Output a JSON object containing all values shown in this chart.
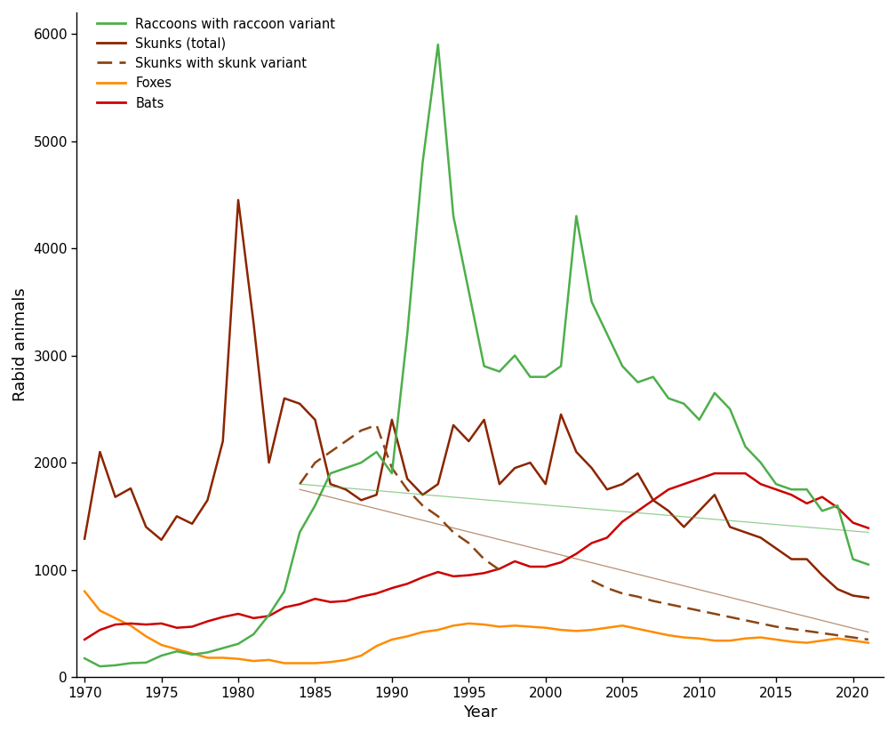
{
  "years": [
    1970,
    1971,
    1972,
    1973,
    1974,
    1975,
    1976,
    1977,
    1978,
    1979,
    1980,
    1981,
    1982,
    1983,
    1984,
    1985,
    1986,
    1987,
    1988,
    1989,
    1990,
    1991,
    1992,
    1993,
    1994,
    1995,
    1996,
    1997,
    1998,
    1999,
    2000,
    2001,
    2002,
    2003,
    2004,
    2005,
    2006,
    2007,
    2008,
    2009,
    2010,
    2011,
    2012,
    2013,
    2014,
    2015,
    2016,
    2017,
    2018,
    2019,
    2020,
    2021
  ],
  "raccoons": [
    175,
    100,
    110,
    130,
    135,
    200,
    240,
    210,
    230,
    270,
    310,
    400,
    580,
    800,
    1350,
    1600,
    1900,
    1950,
    2000,
    2100,
    1900,
    3200,
    4800,
    5900,
    4300,
    3600,
    2900,
    2850,
    3000,
    2800,
    2800,
    2900,
    4300,
    3500,
    3200,
    2900,
    2750,
    2800,
    2600,
    2550,
    2400,
    2650,
    2500,
    2150,
    2000,
    1800,
    1750,
    1750,
    1550,
    1600,
    1100,
    1050
  ],
  "skunks_total": [
    1290,
    2100,
    1680,
    1760,
    1400,
    1280,
    1500,
    1430,
    1650,
    2200,
    4450,
    3300,
    2000,
    2600,
    2550,
    2400,
    1800,
    1750,
    1650,
    1700,
    2400,
    1850,
    1700,
    1800,
    2350,
    2200,
    2400,
    1800,
    1950,
    2000,
    1800,
    2450,
    2100,
    1950,
    1750,
    1800,
    1900,
    1650,
    1550,
    1400,
    1550,
    1700,
    1400,
    1350,
    1300,
    1200,
    1100,
    1100,
    950,
    820,
    760,
    740
  ],
  "skunks_skunk_variant_x": [
    1984,
    1985,
    1986,
    1987,
    1988,
    1989,
    1990,
    1991,
    1992,
    1993,
    1994,
    1995,
    1996,
    1997,
    2003,
    2004,
    2005,
    2006,
    2007,
    2008,
    2009,
    2010,
    2011,
    2012,
    2013,
    2014,
    2015,
    2016,
    2017,
    2018,
    2019,
    2020,
    2021
  ],
  "skunks_skunk_variant_y": [
    1800,
    2000,
    2100,
    2200,
    2300,
    2350,
    1950,
    1750,
    1600,
    1500,
    1350,
    1250,
    1100,
    1000,
    900,
    830,
    780,
    750,
    710,
    680,
    650,
    620,
    590,
    560,
    530,
    500,
    470,
    450,
    430,
    410,
    390,
    370,
    350
  ],
  "foxes": [
    800,
    620,
    550,
    480,
    380,
    300,
    260,
    220,
    180,
    180,
    170,
    150,
    160,
    130,
    130,
    130,
    140,
    160,
    200,
    290,
    350,
    380,
    420,
    440,
    480,
    500,
    490,
    470,
    480,
    470,
    460,
    440,
    430,
    440,
    460,
    480,
    450,
    420,
    390,
    370,
    360,
    340,
    340,
    360,
    370,
    350,
    330,
    320,
    340,
    360,
    340,
    320
  ],
  "bats": [
    350,
    440,
    490,
    500,
    490,
    500,
    460,
    470,
    520,
    560,
    590,
    550,
    570,
    650,
    680,
    730,
    700,
    710,
    750,
    780,
    830,
    870,
    930,
    980,
    940,
    950,
    970,
    1010,
    1080,
    1030,
    1030,
    1070,
    1150,
    1250,
    1300,
    1450,
    1550,
    1650,
    1750,
    1800,
    1850,
    1900,
    1900,
    1900,
    1800,
    1750,
    1700,
    1620,
    1680,
    1580,
    1440,
    1390
  ],
  "xlabel": "Year",
  "ylabel": "Rabid animals",
  "ylim": [
    0,
    6200
  ],
  "xlim": [
    1969.5,
    2022
  ],
  "yticks": [
    0,
    1000,
    2000,
    3000,
    4000,
    5000,
    6000
  ],
  "xticks": [
    1970,
    1975,
    1980,
    1985,
    1990,
    1995,
    2000,
    2005,
    2010,
    2015,
    2020
  ],
  "raccoon_color": "#4daf4a",
  "skunk_total_color": "#8B2500",
  "skunk_variant_color": "#8B4513",
  "fox_color": "#FF8C00",
  "bat_color": "#CC0000",
  "background_color": "#FFFFFF",
  "legend_labels": [
    "Raccoons with raccoon variant",
    "Skunks (total)",
    "Skunks with skunk variant",
    "Foxes",
    "Bats"
  ],
  "raccoon_trend_x": [
    1984,
    2021
  ],
  "raccoon_trend_y": [
    1800,
    1350
  ],
  "skunk_trend_x": [
    1984,
    2021
  ],
  "skunk_trend_y": [
    1750,
    420
  ]
}
